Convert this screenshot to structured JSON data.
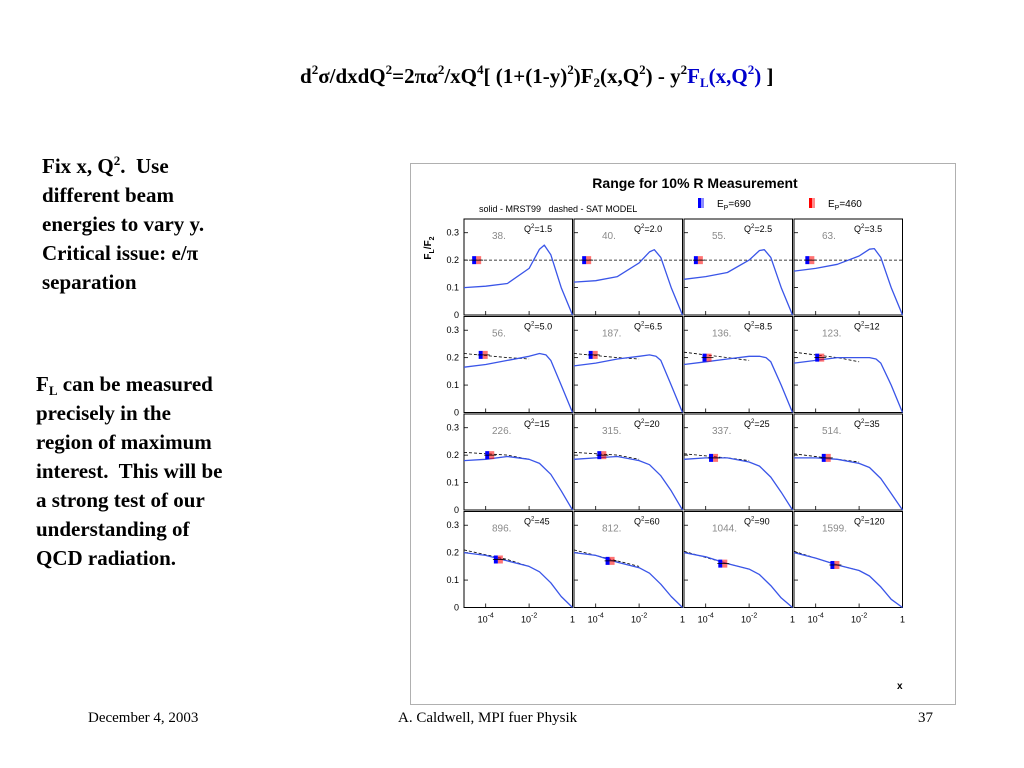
{
  "slide": {
    "formula": {
      "p1": "d",
      "p1_sup": "2",
      "p2": "σ/dxdQ",
      "p2_sup": "2",
      "p3": "=2πα",
      "p3_sup": "2",
      "p4": "/xQ",
      "p4_sup": "4",
      "p5": "[ (1+(1-y)",
      "p5_sup": "2",
      "p6": ")F",
      "p6_sub": "2",
      "p7": "(x,Q",
      "p7_sup": "2",
      "p8": ") - y",
      "p8_sup": "2",
      "fl": "F",
      "fl_sub": "L",
      "fl_args": "(x,Q",
      "fl_args_sup": "2",
      "fl_close": ")",
      "end": " ]"
    },
    "text1": {
      "l1": "Fix x, Q",
      "l1_sup": "2",
      "l1b": ".  Use",
      "l2": "different beam",
      "l3": "energies to vary y.",
      "l4": "Critical issue: e/π",
      "l5": "separation"
    },
    "text2": {
      "f": "F",
      "f_sub": "L",
      "l1": " can be measured",
      "l2": "precisely in the",
      "l3": "region of maximum",
      "l4": "interest.  This will be",
      "l5": "a strong test of our",
      "l6": "understanding of",
      "l7": "QCD radiation."
    },
    "footer": {
      "date": "December 4, 2003",
      "author": "A. Caldwell, MPI fuer Physik",
      "page": "37"
    }
  },
  "chart_data": {
    "type": "line",
    "title": "Range for 10% R Measurement",
    "subtitle": "solid - MRST99   dashed - SAT MODEL",
    "legend": [
      {
        "label": "E",
        "label_sub": "P",
        "label_rest": "=690",
        "color": "#0000ff"
      },
      {
        "label": "E",
        "label_sub": "P",
        "label_rest": "=460",
        "color": "#ff0000"
      }
    ],
    "ylabel": {
      "a": "F",
      "a_sub": "L",
      "b": "/F",
      "b_sub": "2"
    },
    "xlabel": "x",
    "x_scale": "log",
    "xlim": [
      1e-05,
      1
    ],
    "ylim": [
      0,
      0.35
    ],
    "x_ticks": [
      {
        "v": 0.0001,
        "base": "10",
        "exp": "-4"
      },
      {
        "v": 0.01,
        "base": "10",
        "exp": "-2"
      },
      {
        "v": 1,
        "base": "1",
        "exp": ""
      }
    ],
    "y_ticks": [
      {
        "v": 0,
        "label": "0"
      },
      {
        "v": 0.1,
        "label": "0.1"
      },
      {
        "v": 0.2,
        "label": "0.2"
      },
      {
        "v": 0.3,
        "label": "0.3"
      }
    ],
    "colors": {
      "solid": "#3a55e8",
      "dashed": "#000000",
      "e690": "#0000ff",
      "e460": "#ff0000"
    },
    "panels": [
      {
        "q2": "1.5",
        "count": "38.",
        "point": [
          5e-05,
          0.2
        ],
        "solid": [
          [
            1e-05,
            0.1
          ],
          [
            0.0001,
            0.105
          ],
          [
            0.001,
            0.115
          ],
          [
            0.01,
            0.17
          ],
          [
            0.03,
            0.24
          ],
          [
            0.05,
            0.255
          ],
          [
            0.1,
            0.22
          ],
          [
            0.3,
            0.1
          ],
          [
            1,
            0.0
          ]
        ],
        "dashed": [
          [
            1e-05,
            0.2
          ],
          [
            1,
            0.2
          ]
        ]
      },
      {
        "q2": "2.0",
        "count": "40.",
        "point": [
          5e-05,
          0.2
        ],
        "solid": [
          [
            1e-05,
            0.12
          ],
          [
            0.0001,
            0.125
          ],
          [
            0.001,
            0.14
          ],
          [
            0.01,
            0.19
          ],
          [
            0.03,
            0.23
          ],
          [
            0.05,
            0.238
          ],
          [
            0.1,
            0.21
          ],
          [
            0.3,
            0.1
          ],
          [
            1,
            0.0
          ]
        ],
        "dashed": [
          [
            1e-05,
            0.2
          ],
          [
            1,
            0.2
          ]
        ]
      },
      {
        "q2": "2.5",
        "count": "55.",
        "point": [
          6e-05,
          0.2
        ],
        "solid": [
          [
            1e-05,
            0.13
          ],
          [
            0.0001,
            0.14
          ],
          [
            0.001,
            0.155
          ],
          [
            0.01,
            0.2
          ],
          [
            0.03,
            0.235
          ],
          [
            0.05,
            0.238
          ],
          [
            0.1,
            0.21
          ],
          [
            0.3,
            0.1
          ],
          [
            1,
            0.0
          ]
        ],
        "dashed": [
          [
            1e-05,
            0.2
          ],
          [
            1,
            0.2
          ]
        ]
      },
      {
        "q2": "3.5",
        "count": "63.",
        "point": [
          7e-05,
          0.2
        ],
        "solid": [
          [
            1e-05,
            0.16
          ],
          [
            0.0001,
            0.17
          ],
          [
            0.001,
            0.185
          ],
          [
            0.01,
            0.215
          ],
          [
            0.03,
            0.24
          ],
          [
            0.05,
            0.242
          ],
          [
            0.1,
            0.21
          ],
          [
            0.3,
            0.1
          ],
          [
            1,
            0.0
          ]
        ],
        "dashed": [
          [
            1e-05,
            0.2
          ],
          [
            1,
            0.2
          ]
        ]
      },
      {
        "q2": "5.0",
        "count": "56.",
        "point": [
          0.0001,
          0.21
        ],
        "solid": [
          [
            1e-05,
            0.165
          ],
          [
            0.0001,
            0.175
          ],
          [
            0.001,
            0.19
          ],
          [
            0.01,
            0.205
          ],
          [
            0.03,
            0.215
          ],
          [
            0.06,
            0.21
          ],
          [
            0.1,
            0.19
          ],
          [
            0.3,
            0.1
          ],
          [
            1,
            0.0
          ]
        ],
        "dashed": [
          [
            1e-05,
            0.215
          ],
          [
            0.001,
            0.2
          ],
          [
            0.01,
            0.195
          ]
        ]
      },
      {
        "q2": "6.5",
        "count": "187.",
        "point": [
          0.0001,
          0.21
        ],
        "solid": [
          [
            1e-05,
            0.17
          ],
          [
            0.0001,
            0.18
          ],
          [
            0.001,
            0.195
          ],
          [
            0.01,
            0.205
          ],
          [
            0.03,
            0.21
          ],
          [
            0.06,
            0.205
          ],
          [
            0.1,
            0.19
          ],
          [
            0.3,
            0.1
          ],
          [
            1,
            0.0
          ]
        ],
        "dashed": [
          [
            1e-05,
            0.215
          ],
          [
            0.001,
            0.2
          ],
          [
            0.01,
            0.195
          ]
        ]
      },
      {
        "q2": "8.5",
        "count": "136.",
        "point": [
          0.00015,
          0.2
        ],
        "solid": [
          [
            1e-05,
            0.175
          ],
          [
            0.0001,
            0.185
          ],
          [
            0.001,
            0.195
          ],
          [
            0.01,
            0.205
          ],
          [
            0.03,
            0.205
          ],
          [
            0.06,
            0.2
          ],
          [
            0.1,
            0.185
          ],
          [
            0.3,
            0.1
          ],
          [
            1,
            0.0
          ]
        ],
        "dashed": [
          [
            1e-05,
            0.22
          ],
          [
            0.001,
            0.2
          ],
          [
            0.01,
            0.19
          ]
        ]
      },
      {
        "q2": "12",
        "count": "123.",
        "point": [
          0.0002,
          0.2
        ],
        "solid": [
          [
            1e-05,
            0.18
          ],
          [
            0.0001,
            0.19
          ],
          [
            0.001,
            0.2
          ],
          [
            0.01,
            0.2
          ],
          [
            0.03,
            0.2
          ],
          [
            0.06,
            0.195
          ],
          [
            0.1,
            0.18
          ],
          [
            0.3,
            0.1
          ],
          [
            1,
            0.0
          ]
        ],
        "dashed": [
          [
            1e-05,
            0.22
          ],
          [
            0.001,
            0.2
          ],
          [
            0.01,
            0.185
          ]
        ]
      },
      {
        "q2": "15",
        "count": "226.",
        "point": [
          0.0002,
          0.2
        ],
        "solid": [
          [
            1e-05,
            0.18
          ],
          [
            0.0001,
            0.185
          ],
          [
            0.001,
            0.195
          ],
          [
            0.01,
            0.185
          ],
          [
            0.03,
            0.17
          ],
          [
            0.1,
            0.13
          ],
          [
            0.3,
            0.07
          ],
          [
            1,
            0.0
          ]
        ],
        "dashed": [
          [
            1e-05,
            0.21
          ],
          [
            0.001,
            0.2
          ],
          [
            0.01,
            0.185
          ]
        ]
      },
      {
        "q2": "20",
        "count": "315.",
        "point": [
          0.00025,
          0.2
        ],
        "solid": [
          [
            1e-05,
            0.185
          ],
          [
            0.0001,
            0.19
          ],
          [
            0.001,
            0.195
          ],
          [
            0.01,
            0.18
          ],
          [
            0.03,
            0.165
          ],
          [
            0.1,
            0.125
          ],
          [
            0.3,
            0.07
          ],
          [
            1,
            0.0
          ]
        ],
        "dashed": [
          [
            1e-05,
            0.21
          ],
          [
            0.001,
            0.2
          ],
          [
            0.01,
            0.185
          ]
        ]
      },
      {
        "q2": "25",
        "count": "337.",
        "point": [
          0.0003,
          0.19
        ],
        "solid": [
          [
            1e-05,
            0.185
          ],
          [
            0.0001,
            0.19
          ],
          [
            0.001,
            0.19
          ],
          [
            0.01,
            0.175
          ],
          [
            0.03,
            0.16
          ],
          [
            0.1,
            0.12
          ],
          [
            0.3,
            0.065
          ],
          [
            1,
            0.0
          ]
        ],
        "dashed": [
          [
            1e-05,
            0.205
          ],
          [
            0.001,
            0.19
          ],
          [
            0.01,
            0.18
          ]
        ]
      },
      {
        "q2": "35",
        "count": "514.",
        "point": [
          0.0004,
          0.19
        ],
        "solid": [
          [
            1e-05,
            0.19
          ],
          [
            0.0001,
            0.19
          ],
          [
            0.001,
            0.185
          ],
          [
            0.01,
            0.17
          ],
          [
            0.03,
            0.155
          ],
          [
            0.1,
            0.115
          ],
          [
            0.3,
            0.06
          ],
          [
            1,
            0.0
          ]
        ],
        "dashed": [
          [
            1e-05,
            0.205
          ],
          [
            0.001,
            0.185
          ],
          [
            0.01,
            0.175
          ]
        ]
      },
      {
        "q2": "45",
        "count": "896.",
        "point": [
          0.0005,
          0.175
        ],
        "solid": [
          [
            1e-05,
            0.2
          ],
          [
            0.0001,
            0.19
          ],
          [
            0.001,
            0.17
          ],
          [
            0.01,
            0.15
          ],
          [
            0.03,
            0.13
          ],
          [
            0.1,
            0.09
          ],
          [
            0.3,
            0.04
          ],
          [
            1,
            0.0
          ]
        ],
        "dashed": [
          [
            1e-05,
            0.21
          ],
          [
            0.001,
            0.175
          ],
          [
            0.01,
            0.15
          ]
        ]
      },
      {
        "q2": "60",
        "count": "812.",
        "point": [
          0.0006,
          0.17
        ],
        "solid": [
          [
            1e-05,
            0.2
          ],
          [
            0.0001,
            0.19
          ],
          [
            0.001,
            0.165
          ],
          [
            0.01,
            0.145
          ],
          [
            0.03,
            0.125
          ],
          [
            0.1,
            0.085
          ],
          [
            0.3,
            0.04
          ],
          [
            1,
            0.0
          ]
        ],
        "dashed": [
          [
            1e-05,
            0.21
          ],
          [
            0.001,
            0.17
          ],
          [
            0.01,
            0.15
          ]
        ]
      },
      {
        "q2": "90",
        "count": "1044.",
        "point": [
          0.0008,
          0.16
        ],
        "solid": [
          [
            1e-05,
            0.2
          ],
          [
            0.0001,
            0.185
          ],
          [
            0.001,
            0.16
          ],
          [
            0.01,
            0.14
          ],
          [
            0.03,
            0.12
          ],
          [
            0.1,
            0.08
          ],
          [
            0.3,
            0.035
          ],
          [
            1,
            0.0
          ]
        ],
        "dashed": [
          [
            1e-05,
            0.205
          ],
          [
            0.001,
            0.16
          ],
          [
            0.01,
            0.14
          ]
        ]
      },
      {
        "q2": "120",
        "count": "1599.",
        "point": [
          0.001,
          0.155
        ],
        "solid": [
          [
            1e-05,
            0.2
          ],
          [
            0.0001,
            0.18
          ],
          [
            0.001,
            0.155
          ],
          [
            0.01,
            0.135
          ],
          [
            0.03,
            0.115
          ],
          [
            0.1,
            0.075
          ],
          [
            0.3,
            0.03
          ],
          [
            1,
            0.0
          ]
        ],
        "dashed": [
          [
            1e-05,
            0.205
          ],
          [
            0.001,
            0.155
          ],
          [
            0.01,
            0.135
          ]
        ]
      }
    ]
  }
}
